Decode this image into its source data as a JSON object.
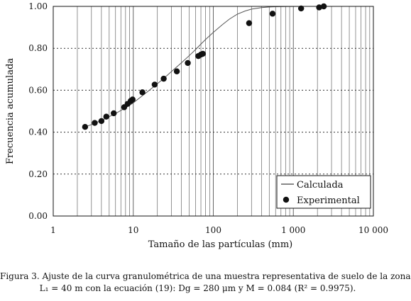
{
  "chart_data": {
    "type": "scatter",
    "xlabel": "Tamaño de las partículas (mm)",
    "ylabel": "Frecuencia acumulada",
    "xscale": "log",
    "xlim": [
      1,
      10000
    ],
    "ylim": [
      0,
      1
    ],
    "grid": "on",
    "legend_position": "bottom-right",
    "x_tick_labels": [
      {
        "value": 1,
        "label": "1"
      },
      {
        "value": 10,
        "label": "10"
      },
      {
        "value": 100,
        "label": "100"
      },
      {
        "value": 1000,
        "label": "1 000"
      },
      {
        "value": 10000,
        "label": "10 000"
      }
    ],
    "y_tick_labels": [
      {
        "value": 0,
        "label": "0.00"
      },
      {
        "value": 0.2,
        "label": "0.20"
      },
      {
        "value": 0.4,
        "label": "0.40"
      },
      {
        "value": 0.6,
        "label": "0.60"
      },
      {
        "value": 0.8,
        "label": "0.80"
      },
      {
        "value": 1.0,
        "label": "1.00"
      }
    ],
    "series": [
      {
        "name": "Calculada",
        "kind": "line",
        "color": "#555555",
        "x": [
          2.5,
          3,
          4,
          5,
          6,
          8,
          10,
          13,
          16,
          20,
          25,
          30,
          40,
          50,
          60,
          70,
          80,
          100,
          130,
          160,
          200,
          250,
          300,
          400,
          500,
          600,
          800,
          1000,
          1300,
          1600,
          2000,
          2400
        ],
        "y": [
          0.425,
          0.436,
          0.456,
          0.474,
          0.489,
          0.516,
          0.54,
          0.574,
          0.601,
          0.631,
          0.662,
          0.689,
          0.731,
          0.765,
          0.794,
          0.82,
          0.842,
          0.876,
          0.913,
          0.94,
          0.963,
          0.978,
          0.987,
          0.994,
          0.997,
          0.9985,
          0.9993,
          0.9997,
          0.9999,
          1.0,
          1.0,
          1.0
        ]
      },
      {
        "name": "Experimental",
        "kind": "scatter",
        "color": "#111111",
        "x": [
          2.5,
          3.3,
          4.0,
          4.6,
          5.7,
          7.7,
          8.5,
          9.3,
          9.8,
          13,
          18.5,
          24,
          35,
          48,
          65,
          70,
          74,
          280,
          550,
          1250,
          2100,
          2400
        ],
        "y": [
          0.425,
          0.444,
          0.453,
          0.474,
          0.49,
          0.519,
          0.535,
          0.549,
          0.556,
          0.59,
          0.627,
          0.655,
          0.69,
          0.73,
          0.763,
          0.77,
          0.774,
          0.92,
          0.965,
          0.99,
          0.995,
          1.0
        ]
      }
    ]
  },
  "caption": {
    "line1": "Figura 3. Ajuste de la curva granulométrica de una muestra representativa de suelo de la zona",
    "line2": "L₁ = 40 m con la ecuación (19): Dg = 280 μm y M = 0.084 (R² = 0.9975)."
  }
}
